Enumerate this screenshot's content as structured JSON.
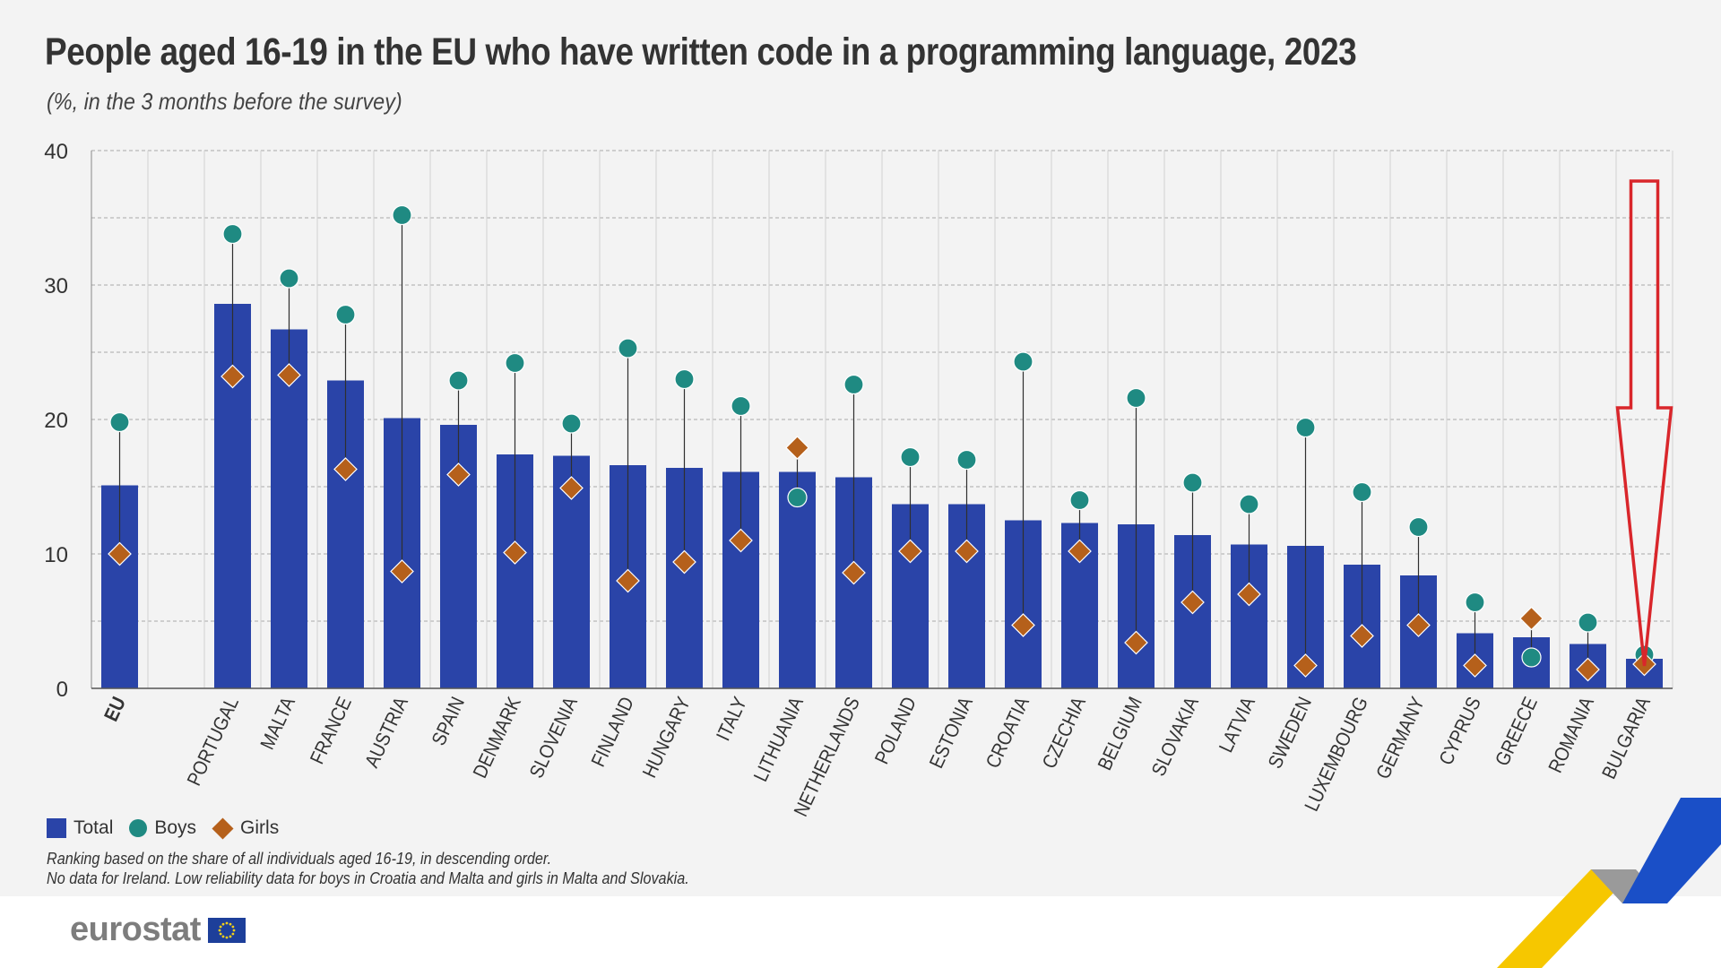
{
  "title": "People aged 16-19 in the EU who have written code in a programming language, 2023",
  "subtitle": "(%, in the 3 months before the survey)",
  "legend": {
    "total": "Total",
    "boys": "Boys",
    "girls": "Girls"
  },
  "notes": [
    "Ranking based on the share of all individuals aged 16-19, in descending order.",
    "No data for Ireland. Low reliability data for boys in Croatia and Malta and girls in Malta and Slovakia."
  ],
  "logo": {
    "text": "eurostat"
  },
  "colors": {
    "total": "#2a44a8",
    "boys": "#1f8a82",
    "girls": "#b5601b",
    "arrow": "#d9262b",
    "grid": "#a8a8a8"
  },
  "chart_data": {
    "type": "bar",
    "title": "People aged 16-19 in the EU who have written code in a programming language, 2023",
    "subtitle": "(%, in the 3 months before the survey)",
    "ylim": [
      0,
      40
    ],
    "yticks": [
      0,
      10,
      20,
      30,
      40
    ],
    "grid": true,
    "legend_position": "bottom-left",
    "categories": [
      "EU",
      "PORTUGAL",
      "MALTA",
      "FRANCE",
      "AUSTRIA",
      "SPAIN",
      "DENMARK",
      "SLOVENIA",
      "FINLAND",
      "HUNGARY",
      "ITALY",
      "LITHUANIA",
      "NETHERLANDS",
      "POLAND",
      "ESTONIA",
      "CROATIA",
      "CZECHIA",
      "BELGIUM",
      "SLOVAKIA",
      "LATVIA",
      "SWEDEN",
      "LUXEMBOURG",
      "GERMANY",
      "CYPRUS",
      "GREECE",
      "ROMANIA",
      "BULGARIA"
    ],
    "series": [
      {
        "name": "Total",
        "mark": "bar",
        "values": [
          15.1,
          28.6,
          26.7,
          22.9,
          20.1,
          19.6,
          17.4,
          17.3,
          16.6,
          16.4,
          16.1,
          16.1,
          15.7,
          13.7,
          13.7,
          12.5,
          12.3,
          12.2,
          11.4,
          10.7,
          10.6,
          9.2,
          8.4,
          4.1,
          3.8,
          3.3,
          2.2
        ]
      },
      {
        "name": "Boys",
        "mark": "circle",
        "values": [
          19.8,
          33.8,
          30.5,
          27.8,
          35.2,
          22.9,
          24.2,
          19.7,
          25.3,
          23.0,
          21.0,
          14.2,
          22.6,
          17.2,
          17.0,
          24.3,
          14.0,
          21.6,
          15.3,
          13.7,
          19.4,
          14.6,
          12.0,
          6.4,
          2.3,
          4.9,
          2.5
        ]
      },
      {
        "name": "Girls",
        "mark": "diamond",
        "values": [
          10.0,
          23.2,
          23.3,
          16.3,
          8.7,
          15.9,
          10.1,
          14.9,
          8.0,
          9.4,
          11.0,
          17.9,
          8.6,
          10.2,
          10.2,
          4.7,
          10.2,
          3.4,
          6.4,
          7.0,
          1.7,
          3.9,
          4.7,
          1.7,
          5.2,
          1.4,
          1.8
        ]
      }
    ],
    "annotations": [
      {
        "type": "arrow",
        "direction": "down",
        "target": "BULGARIA"
      }
    ]
  }
}
